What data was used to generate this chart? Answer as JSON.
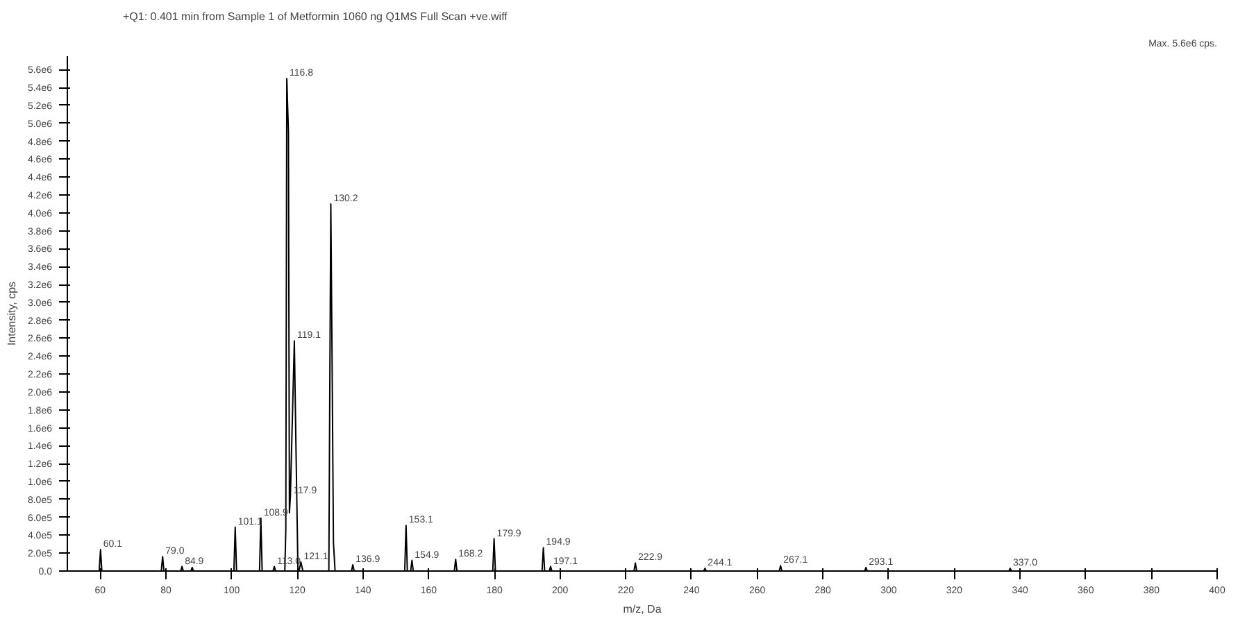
{
  "chart_data": {
    "type": "line",
    "title": "+Q1: 0.401 min from Sample 1 of Metformin 1060 ng Q1MS Full Scan +ve.wiff",
    "xlabel": "m/z, Da",
    "ylabel": "Intensity, cps",
    "xlim": [
      50,
      400
    ],
    "xticks": [
      60,
      80,
      100,
      120,
      140,
      160,
      180,
      200,
      220,
      240,
      260,
      280,
      300,
      320,
      340,
      360,
      380,
      400
    ],
    "ylim": [
      0,
      5750000
    ],
    "yticks": [
      {
        "value": 0,
        "label": "0.0"
      },
      {
        "value": 200000,
        "label": "2.0e5"
      },
      {
        "value": 400000,
        "label": "4.0e5"
      },
      {
        "value": 600000,
        "label": "6.0e5"
      },
      {
        "value": 800000,
        "label": "8.0e5"
      },
      {
        "value": 1000000,
        "label": "1.0e6"
      },
      {
        "value": 1200000,
        "label": "1.2e6"
      },
      {
        "value": 1400000,
        "label": "1.4e6"
      },
      {
        "value": 1600000,
        "label": "1.6e6"
      },
      {
        "value": 1800000,
        "label": "1.8e6"
      },
      {
        "value": 2000000,
        "label": "2.0e6"
      },
      {
        "value": 2200000,
        "label": "2.2e6"
      },
      {
        "value": 2400000,
        "label": "2.4e6"
      },
      {
        "value": 2600000,
        "label": "2.6e6"
      },
      {
        "value": 2800000,
        "label": "2.8e6"
      },
      {
        "value": 3000000,
        "label": "3.0e6"
      },
      {
        "value": 3200000,
        "label": "3.2e6"
      },
      {
        "value": 3400000,
        "label": "3.4e6"
      },
      {
        "value": 3600000,
        "label": "3.6e6"
      },
      {
        "value": 3800000,
        "label": "3.8e6"
      },
      {
        "value": 4000000,
        "label": "4.0e6"
      },
      {
        "value": 4200000,
        "label": "4.2e6"
      },
      {
        "value": 4400000,
        "label": "4.4e6"
      },
      {
        "value": 4600000,
        "label": "4.6e6"
      },
      {
        "value": 4800000,
        "label": "4.8e6"
      },
      {
        "value": 5000000,
        "label": "5.0e6"
      },
      {
        "value": 5200000,
        "label": "5.2e6"
      },
      {
        "value": 5400000,
        "label": "5.4e6"
      },
      {
        "value": 5600000,
        "label": "5.6e6"
      }
    ],
    "grid": false,
    "series": [
      {
        "color": "#000000",
        "x": [
          50,
          59.7,
          60.1,
          60.5,
          78.6,
          79.0,
          79.4,
          84.5,
          84.9,
          85.3,
          87.6,
          88.0,
          88.4,
          100.7,
          101.1,
          101.5,
          108.5,
          108.9,
          109.3,
          112.6,
          113.0,
          113.4,
          116.2,
          116.5,
          116.8,
          117.3,
          117.6,
          117.9,
          119.1,
          119.5,
          120.2,
          120.5,
          121.1,
          121.7,
          129.6,
          129.9,
          130.2,
          130.6,
          131.0,
          131.5,
          136.5,
          136.9,
          137.3,
          152.7,
          153.1,
          153.5,
          154.5,
          154.9,
          155.3,
          167.8,
          168.2,
          168.6,
          179.5,
          179.9,
          180.3,
          194.5,
          194.9,
          195.3,
          196.7,
          197.1,
          197.5,
          222.5,
          222.9,
          223.3,
          243.7,
          244.1,
          244.5,
          266.7,
          267.1,
          267.5,
          292.7,
          293.1,
          293.5,
          336.6,
          337.0,
          337.4,
          400
        ],
        "values": [
          0,
          0,
          240000,
          0,
          0,
          160000,
          0,
          0,
          50000,
          0,
          0,
          40000,
          0,
          0,
          490000,
          0,
          0,
          590000,
          0,
          0,
          50000,
          0,
          0,
          460000,
          5500000,
          4900000,
          650000,
          840000,
          2570000,
          1600000,
          0,
          0,
          100000,
          0,
          0,
          2100000,
          4100000,
          2300000,
          320000,
          0,
          0,
          70000,
          0,
          0,
          510000,
          0,
          0,
          120000,
          0,
          0,
          130000,
          0,
          0,
          360000,
          0,
          0,
          260000,
          0,
          0,
          50000,
          0,
          0,
          90000,
          0,
          0,
          30000,
          0,
          0,
          60000,
          0,
          0,
          40000,
          0,
          0,
          30000,
          0,
          0
        ]
      }
    ],
    "annotations": [
      {
        "text": "60.1",
        "x": 60.1,
        "y": 240000
      },
      {
        "text": "79.0",
        "x": 79.0,
        "y": 160000
      },
      {
        "text": "84.9",
        "x": 84.9,
        "y": 50000
      },
      {
        "text": "101.1",
        "x": 101.1,
        "y": 490000
      },
      {
        "text": "108.9",
        "x": 108.9,
        "y": 590000
      },
      {
        "text": "113.0",
        "x": 113.0,
        "y": 50000
      },
      {
        "text": "116.8",
        "x": 116.8,
        "y": 5500000
      },
      {
        "text": "117.9",
        "x": 117.9,
        "y": 840000
      },
      {
        "text": "119.1",
        "x": 119.1,
        "y": 2570000
      },
      {
        "text": "121.1",
        "x": 121.1,
        "y": 100000
      },
      {
        "text": "130.2",
        "x": 130.2,
        "y": 4100000
      },
      {
        "text": "136.9",
        "x": 136.9,
        "y": 70000
      },
      {
        "text": "153.1",
        "x": 153.1,
        "y": 510000
      },
      {
        "text": "154.9",
        "x": 154.9,
        "y": 120000
      },
      {
        "text": "168.2",
        "x": 168.2,
        "y": 130000
      },
      {
        "text": "179.9",
        "x": 179.9,
        "y": 360000
      },
      {
        "text": "194.9",
        "x": 194.9,
        "y": 260000
      },
      {
        "text": "197.1",
        "x": 197.1,
        "y": 50000
      },
      {
        "text": "222.9",
        "x": 222.9,
        "y": 90000
      },
      {
        "text": "244.1",
        "x": 244.1,
        "y": 30000
      },
      {
        "text": "267.1",
        "x": 267.1,
        "y": 60000
      },
      {
        "text": "293.1",
        "x": 293.1,
        "y": 40000
      },
      {
        "text": "337.0",
        "x": 337.0,
        "y": 30000
      },
      "Max. 5.6e6 cps."
    ]
  }
}
